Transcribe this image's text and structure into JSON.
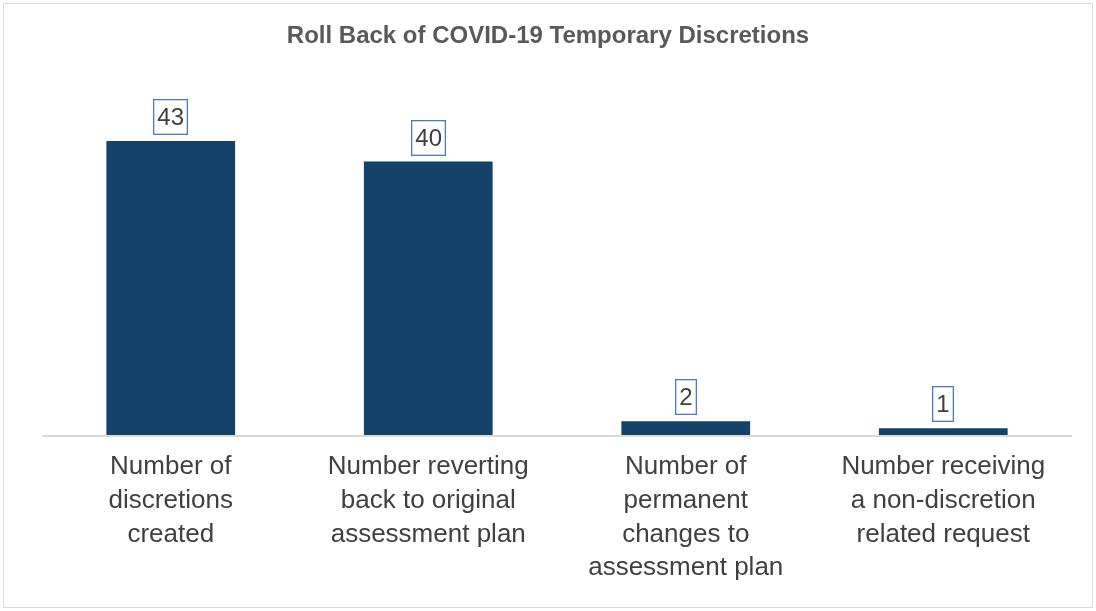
{
  "chart_data": {
    "type": "bar",
    "title": "Roll Back of COVID-19 Temporary Discretions",
    "categories": [
      "Number of discretions created",
      "Number reverting back to original assessment plan",
      "Number of permanent changes to assessment plan",
      "Number receiving a non-discretion related request"
    ],
    "values": [
      43,
      40,
      2,
      1
    ],
    "color": "#15426b",
    "data_labels": true
  }
}
